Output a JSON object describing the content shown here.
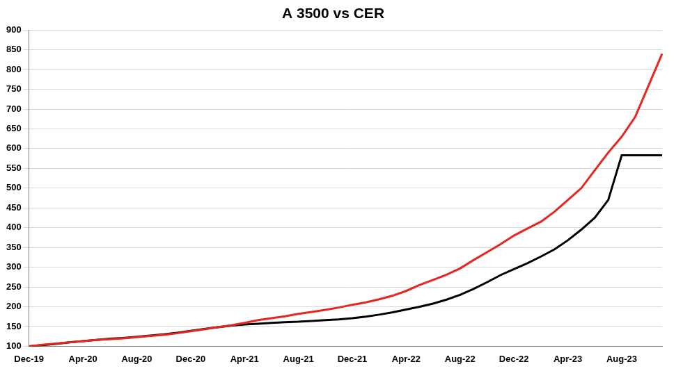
{
  "chart_data": {
    "type": "line",
    "title": "A 3500 vs CER",
    "categories": [
      "Dec-19",
      null,
      null,
      null,
      "Apr-20",
      null,
      null,
      null,
      "Aug-20",
      null,
      null,
      null,
      "Dec-20",
      null,
      null,
      null,
      "Apr-21",
      null,
      null,
      null,
      "Aug-21",
      null,
      null,
      null,
      "Dec-21",
      null,
      null,
      null,
      "Apr-22",
      null,
      null,
      null,
      "Aug-22",
      null,
      null,
      null,
      "Dec-22",
      null,
      null,
      null,
      "Apr-23",
      null,
      null,
      null,
      "Aug-23",
      null,
      null,
      null
    ],
    "series": [
      {
        "name": "CER",
        "color": "#e8251f",
        "values": [
          100,
          104,
          107,
          110,
          113,
          116,
          118,
          120,
          123,
          126,
          129,
          133,
          138,
          143,
          148,
          153,
          159,
          166,
          171,
          176,
          182,
          187,
          192,
          198,
          205,
          211,
          219,
          228,
          240,
          255,
          268,
          281,
          297,
          318,
          338,
          358,
          380,
          398,
          415,
          440,
          470,
          500,
          545,
          590,
          630,
          680,
          760,
          840
        ]
      },
      {
        "name": "A 3500",
        "color": "#000000",
        "values": [
          100,
          103,
          106,
          110,
          113,
          116,
          119,
          121,
          124,
          127,
          130,
          134,
          139,
          144,
          148,
          152,
          155,
          157,
          159,
          161,
          162,
          164,
          166,
          168,
          171,
          175,
          180,
          186,
          193,
          200,
          208,
          218,
          230,
          245,
          262,
          280,
          295,
          310,
          327,
          345,
          368,
          395,
          425,
          470,
          583,
          583,
          583,
          583
        ]
      }
    ],
    "ylim": [
      100,
      900
    ],
    "yticks": [
      100,
      150,
      200,
      250,
      300,
      350,
      400,
      450,
      500,
      550,
      600,
      650,
      700,
      750,
      800,
      850,
      900
    ],
    "grid": true
  }
}
